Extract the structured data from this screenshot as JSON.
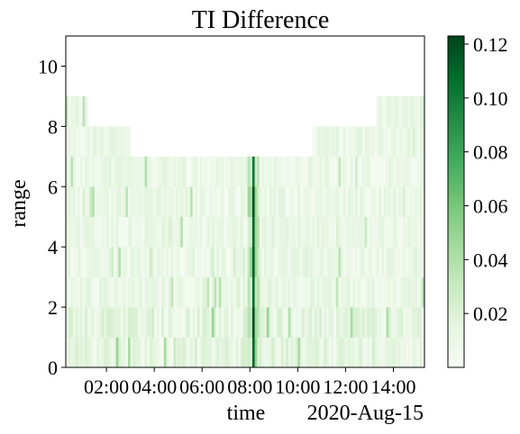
{
  "chart_data": {
    "type": "heatmap",
    "title": "TI Difference",
    "xlabel": "time",
    "ylabel": "range",
    "x_offset_label": "2020-Aug-15",
    "x_tick_labels": [
      "02:00",
      "04:00",
      "06:00",
      "08:00",
      "10:00",
      "12:00",
      "14:00"
    ],
    "x_range_hours": [
      0.3,
      15.3
    ],
    "ylim": [
      0,
      11
    ],
    "y_ticks": [
      0,
      2,
      4,
      6,
      8,
      10
    ],
    "colorbar": {
      "colormap": "Greens",
      "range": [
        0.0,
        0.123
      ],
      "ticks": [
        0.02,
        0.04,
        0.06,
        0.08,
        0.1,
        0.12
      ],
      "tick_labels": [
        "0.02",
        "0.04",
        "0.06",
        "0.08",
        "0.10",
        "0.12"
      ]
    },
    "grid": false,
    "range_bins": [
      1,
      2,
      3,
      4,
      5,
      6,
      7,
      8,
      9
    ],
    "data_extent_by_time": [
      {
        "from_hours": 0.3,
        "to_hours": 1.2,
        "max_range": 9
      },
      {
        "from_hours": 1.2,
        "to_hours": 3.0,
        "max_range": 8
      },
      {
        "from_hours": 3.0,
        "to_hours": 5.0,
        "max_range": 7
      },
      {
        "from_hours": 5.0,
        "to_hours": 10.5,
        "max_range": 7
      },
      {
        "from_hours": 10.5,
        "to_hours": 13.2,
        "max_range": 8
      },
      {
        "from_hours": 13.2,
        "to_hours": 15.3,
        "max_range": 9
      }
    ],
    "peak_feature": {
      "time_hours": 8.1,
      "from_range": 1,
      "to_range": 7,
      "value": 0.123
    },
    "typical_value": 0.01,
    "near_peak_value": 0.05
  },
  "colors": {
    "cmap_low": "#f7fcf5",
    "cmap_mid": "#74c476",
    "cmap_high": "#00441b",
    "axes": "#000000",
    "background": "#ffffff"
  }
}
